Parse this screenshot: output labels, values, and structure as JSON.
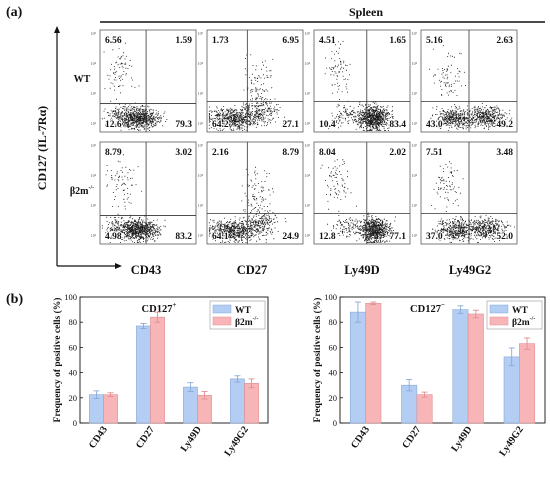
{
  "panel_a": {
    "label": "(a)",
    "title": "Spleen",
    "y_axis_label": "CD127 (IL-7Rα)",
    "markers": [
      "CD43",
      "CD27",
      "Ly49D",
      "Ly49G2"
    ],
    "rows": [
      {
        "label": "WT",
        "label_sup": "",
        "plots": [
          {
            "ul": "6.56",
            "ur": "1.59",
            "ll": "12.6",
            "lr": "79.3"
          },
          {
            "ul": "1.73",
            "ur": "6.95",
            "ll": "64.2",
            "lr": "27.1"
          },
          {
            "ul": "4.51",
            "ur": "1.65",
            "ll": "10.4",
            "lr": "83.4"
          },
          {
            "ul": "5.16",
            "ur": "2.63",
            "ll": "43.0",
            "lr": "49.2"
          }
        ]
      },
      {
        "label": "β2m",
        "label_sup": "-/-",
        "plots": [
          {
            "ul": "8.79",
            "ur": "3.02",
            "ll": "4.98",
            "lr": "83.2"
          },
          {
            "ul": "2.16",
            "ur": "8.79",
            "ll": "64.1",
            "lr": "24.9"
          },
          {
            "ul": "8.04",
            "ur": "2.02",
            "ll": "12.8",
            "lr": "77.1"
          },
          {
            "ul": "7.51",
            "ur": "3.48",
            "ll": "37.0",
            "lr": "52.0"
          }
        ]
      }
    ]
  },
  "panel_b": {
    "label": "(b)"
  },
  "colors": {
    "wt": "#b3cdf3",
    "ko": "#f7b5b8",
    "wt_edge": "#8aa9d8",
    "ko_edge": "#e08f93"
  },
  "chart_data": [
    {
      "type": "bar",
      "title": "CD127",
      "title_sup": "+",
      "ylabel": "Frequency of positive cells (%)",
      "ylim": [
        0,
        100
      ],
      "yticks": [
        "0",
        "20",
        "40",
        "60",
        "80",
        "100"
      ],
      "categories": [
        "CD43",
        "CD27",
        "Ly49D",
        "Ly49G2"
      ],
      "legend_position": "top-right",
      "series": [
        {
          "name": "WT",
          "name_sup": "",
          "values": [
            22.5,
            77,
            28.5,
            35
          ],
          "errors": [
            3,
            2,
            3.5,
            2.5
          ]
        },
        {
          "name": "β2m",
          "name_sup": "-/-",
          "values": [
            22.5,
            84,
            22,
            31.5
          ],
          "errors": [
            1.5,
            4,
            3,
            3.5
          ]
        }
      ]
    },
    {
      "type": "bar",
      "title": "CD127",
      "title_sup": "−",
      "ylabel": "Frequency of positive cells (%)",
      "ylim": [
        0,
        100
      ],
      "yticks": [
        "0",
        "20",
        "40",
        "60",
        "80",
        "100"
      ],
      "categories": [
        "CD43",
        "CD27",
        "Ly49D",
        "Ly49G2"
      ],
      "legend_position": "top-right",
      "series": [
        {
          "name": "WT",
          "name_sup": "",
          "values": [
            88,
            30,
            90,
            52.5
          ],
          "errors": [
            8,
            4.5,
            3,
            7
          ]
        },
        {
          "name": "β2m",
          "name_sup": "-/-",
          "values": [
            95,
            22.5,
            86.5,
            63
          ],
          "errors": [
            1,
            2,
            3,
            4.5
          ]
        }
      ]
    }
  ]
}
